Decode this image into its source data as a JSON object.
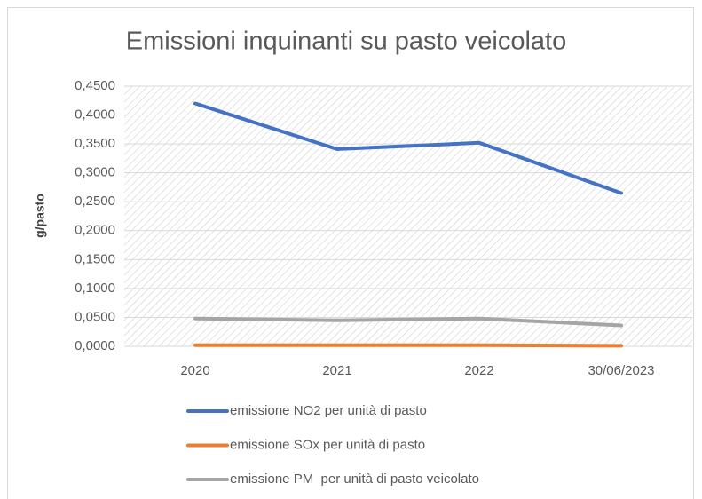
{
  "chart_data": {
    "type": "line",
    "title": "Emissioni inquinanti su pasto veicolato",
    "y_label": "g/pasto",
    "categories": [
      "2020",
      "2021",
      "2022",
      "30/06/2023"
    ],
    "series": [
      {
        "name": "emissione NO2 per unità di pasto",
        "color": "#4472c4",
        "values": [
          0.42,
          0.341,
          0.352,
          0.265
        ]
      },
      {
        "name": "emissione SOx per unità di pasto",
        "color": "#ed7d31",
        "values": [
          0.002,
          0.002,
          0.002,
          0.001
        ]
      },
      {
        "name": "emissione PM  per unità di pasto veicolato",
        "color": "#a5a5a5",
        "values": [
          0.048,
          0.045,
          0.048,
          0.036
        ]
      }
    ],
    "ylim": [
      0,
      0.45
    ],
    "yticks": [
      {
        "value": 0,
        "label": "0,0000"
      },
      {
        "value": 0.05,
        "label": "0,0500"
      },
      {
        "value": 0.1,
        "label": "0,1000"
      },
      {
        "value": 0.15,
        "label": "0,1500"
      },
      {
        "value": 0.2,
        "label": "0,2000"
      },
      {
        "value": 0.25,
        "label": "0,2500"
      },
      {
        "value": 0.3,
        "label": "0,3000"
      },
      {
        "value": 0.35,
        "label": "0,3500"
      },
      {
        "value": 0.4,
        "label": "0,4000"
      },
      {
        "value": 0.45,
        "label": "0,4500"
      }
    ],
    "grid": true,
    "legend": "bottom"
  }
}
